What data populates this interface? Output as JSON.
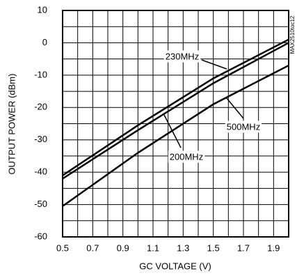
{
  "chart_data": {
    "type": "line",
    "xlabel": "GC VOLTAGE (V)",
    "ylabel": "OUTPUT POWER (dBm)",
    "side_note": "MAX2510toc12",
    "xlim": [
      0.5,
      2.0
    ],
    "ylim": [
      -60,
      10
    ],
    "xticks": [
      0.5,
      0.7,
      0.9,
      1.1,
      1.3,
      1.5,
      1.7,
      1.9
    ],
    "yticks": [
      -60,
      -50,
      -40,
      -30,
      -20,
      -10,
      0,
      10
    ],
    "xgrid": [
      0.5,
      0.6,
      0.7,
      0.8,
      0.9,
      1.0,
      1.1,
      1.2,
      1.3,
      1.4,
      1.5,
      1.6,
      1.7,
      1.8,
      1.9,
      2.0
    ],
    "ygrid": [
      -60,
      -55,
      -50,
      -45,
      -40,
      -35,
      -30,
      -25,
      -20,
      -15,
      -10,
      -5,
      0,
      5,
      10
    ],
    "x": [
      0.5,
      1.0,
      1.5,
      2.0
    ],
    "series": [
      {
        "name": "230MHz",
        "color": "#000000",
        "values": [
          -41,
          -25.5,
          -11,
          1
        ]
      },
      {
        "name": "200MHz",
        "color": "#000000",
        "values": [
          -42,
          -27,
          -12.5,
          0
        ]
      },
      {
        "name": "500MHz",
        "color": "#000000",
        "values": [
          -50.5,
          -34,
          -19,
          -7
        ]
      }
    ]
  }
}
